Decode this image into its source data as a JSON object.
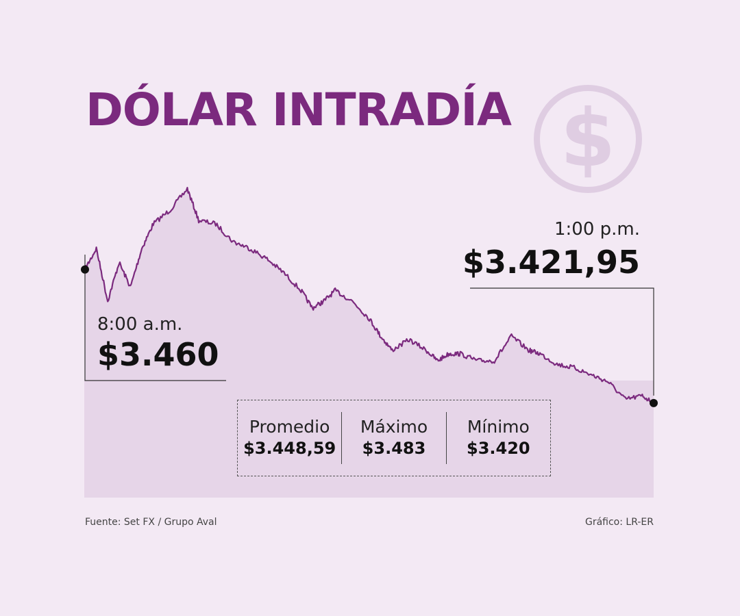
{
  "title": "DÓLAR INTRADÍA",
  "icon": "dollar-circle-icon",
  "colors": {
    "background": "#f3e9f4",
    "accent": "#7b2a7e",
    "area": "#e6d5e8",
    "icon": "#dfcde2"
  },
  "start": {
    "time": "8:00 a.m.",
    "price": "$3.460"
  },
  "end": {
    "time": "1:00 p.m.",
    "price": "$3.421,95"
  },
  "stats": [
    {
      "label": "Promedio",
      "value": "$3.448,59"
    },
    {
      "label": "Máximo",
      "value": "$3.483"
    },
    {
      "label": "Mínimo",
      "value": "$3.420"
    }
  ],
  "source": "Fuente: Set FX / Grupo Aval",
  "credit": "Gráfico: LR-ER",
  "chart_data": {
    "type": "area",
    "title": "DÓLAR INTRADÍA",
    "x_start": "8:00 a.m.",
    "x_end": "1:00 p.m.",
    "x": [
      0,
      0.1,
      0.2,
      0.3,
      0.4,
      0.5,
      0.6,
      0.75,
      0.9,
      1.0,
      1.15,
      1.3,
      1.45,
      1.6,
      1.75,
      1.9,
      2.0,
      2.1,
      2.2,
      2.35,
      2.5,
      2.6,
      2.7,
      2.85,
      3.0,
      3.1,
      3.2,
      3.3,
      3.45,
      3.6,
      3.75,
      3.9,
      4.0,
      4.15,
      4.3,
      4.45,
      4.6,
      4.75,
      4.9,
      5.0
    ],
    "y": [
      3460,
      3466,
      3451,
      3462,
      3455,
      3466,
      3473,
      3477,
      3483,
      3474,
      3473,
      3468,
      3466,
      3463,
      3459,
      3454,
      3449,
      3451,
      3454,
      3451,
      3446,
      3441,
      3437,
      3440,
      3437,
      3434,
      3436,
      3436,
      3434,
      3434,
      3441,
      3437,
      3436,
      3433,
      3432,
      3430,
      3428,
      3423,
      3424,
      3421.95
    ],
    "ylim": [
      3395,
      3490
    ],
    "summary": {
      "average": 3448.59,
      "max": 3483,
      "min": 3420
    }
  }
}
